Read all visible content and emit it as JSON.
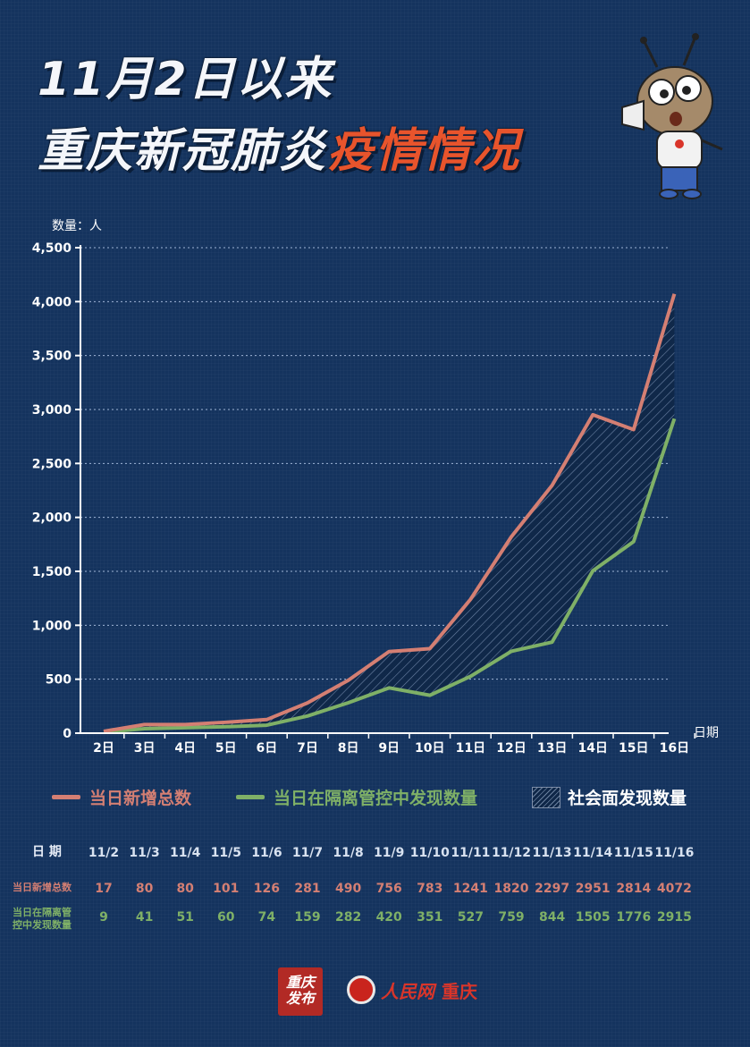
{
  "title": {
    "line1": "11月2日以来",
    "line2_main": "重庆新冠肺炎",
    "line2_highlight": "疫情情况"
  },
  "colors": {
    "background": "#14335e",
    "total": "#d47f73",
    "isolated": "#7fb067",
    "highlight": "#e8542c"
  },
  "chart_data": {
    "type": "line",
    "ylabel": "数量：人",
    "xlabel": "日期",
    "ylim": [
      0,
      4500
    ],
    "yticks": [
      "0",
      "500",
      "1,000",
      "1,500",
      "2,000",
      "2,500",
      "3,000",
      "3,500",
      "4,000",
      "4,500"
    ],
    "ytick_values": [
      0,
      500,
      1000,
      1500,
      2000,
      2500,
      3000,
      3500,
      4000,
      4500
    ],
    "categories": [
      "2日",
      "3日",
      "4日",
      "5日",
      "6日",
      "7日",
      "8日",
      "9日",
      "10日",
      "11日",
      "12日",
      "13日",
      "14日",
      "15日",
      "16日"
    ],
    "series": [
      {
        "name": "当日新增总数",
        "values": [
          17,
          80,
          80,
          101,
          126,
          281,
          490,
          756,
          783,
          1241,
          1820,
          2297,
          2951,
          2814,
          4072
        ]
      },
      {
        "name": "当日在隔离管控中发现数量",
        "values": [
          9,
          41,
          51,
          60,
          74,
          159,
          282,
          420,
          351,
          527,
          759,
          844,
          1505,
          1776,
          2915
        ]
      }
    ],
    "shaded_area_label": "社会面发现数量",
    "grid": "horizontal dotted"
  },
  "legend": {
    "total": "当日新增总数",
    "isolated": "当日在隔离管控中发现数量",
    "community": "社会面发现数量"
  },
  "table": {
    "header_label": "日 期",
    "dates": [
      "11/2",
      "11/3",
      "11/4",
      "11/5",
      "11/6",
      "11/7",
      "11/8",
      "11/9",
      "11/10",
      "11/11",
      "11/12",
      "11/13",
      "11/14",
      "11/15",
      "11/16"
    ],
    "total_label": "当日新增总数",
    "total": [
      "17",
      "80",
      "80",
      "101",
      "126",
      "281",
      "490",
      "756",
      "783",
      "1241",
      "1820",
      "2297",
      "2951",
      "2814",
      "4072"
    ],
    "isolated_label_1": "当日在隔离管",
    "isolated_label_2": "控中发现数量",
    "isolated": [
      "9",
      "41",
      "51",
      "60",
      "74",
      "159",
      "282",
      "420",
      "351",
      "527",
      "759",
      "844",
      "1505",
      "1776",
      "2915"
    ]
  },
  "footer": {
    "seal_text": "重庆发布",
    "people_text": "人民网",
    "people_city": "重庆"
  }
}
